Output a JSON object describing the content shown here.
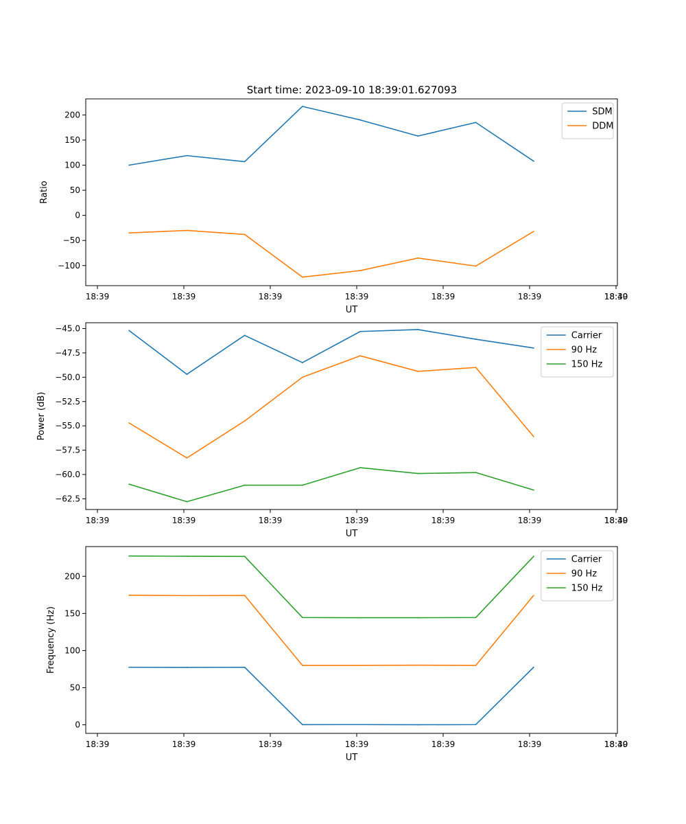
{
  "figure": {
    "title": "Start time: 2023-09-10 18:39:01.627093"
  },
  "chart_data": [
    {
      "type": "line",
      "title": "Start time: 2023-09-10 18:39:01.627093",
      "xlabel": "UT",
      "ylabel": "Ratio",
      "x_tick_labels": [
        "18:39",
        "18:39",
        "18:39",
        "18:39",
        "18:39",
        "18:39",
        "18:39",
        "18:40"
      ],
      "x_index": [
        0,
        1,
        2,
        3,
        4,
        5,
        6,
        7
      ],
      "xlim": [
        -0.75,
        8.45
      ],
      "ylim": [
        -140,
        232
      ],
      "y_ticks": [
        -100,
        -50,
        0,
        50,
        100,
        150,
        200
      ],
      "y_tick_labels": [
        "−100",
        "−50",
        "0",
        "50",
        "100",
        "150",
        "200"
      ],
      "legend_position": "top-right",
      "series": [
        {
          "name": "SDM",
          "color": "#1f77b4",
          "values": [
            100,
            119,
            107,
            217,
            190,
            158,
            185,
            108
          ]
        },
        {
          "name": "DDM",
          "color": "#ff7f0e",
          "values": [
            -35,
            -30,
            -38,
            -123,
            -110,
            -85,
            -101,
            -32
          ]
        }
      ]
    },
    {
      "type": "line",
      "title": "",
      "xlabel": "UT",
      "ylabel": "Power (dB)",
      "x_tick_labels": [
        "18:39",
        "18:39",
        "18:39",
        "18:39",
        "18:39",
        "18:39",
        "18:39",
        "18:40"
      ],
      "x_index": [
        0,
        1,
        2,
        3,
        4,
        5,
        6,
        7
      ],
      "xlim": [
        -0.75,
        8.45
      ],
      "ylim": [
        -63.6,
        -44.4
      ],
      "y_ticks": [
        -62.5,
        -60.0,
        -57.5,
        -55.0,
        -52.5,
        -50.0,
        -47.5,
        -45.0
      ],
      "y_tick_labels": [
        "−62.5",
        "−60.0",
        "−57.5",
        "−55.0",
        "−52.5",
        "−50.0",
        "−47.5",
        "−45.0"
      ],
      "legend_position": "top-right",
      "series": [
        {
          "name": "Carrier",
          "color": "#1f77b4",
          "values": [
            -45.2,
            -49.7,
            -45.7,
            -48.5,
            -45.3,
            -45.1,
            -46.1,
            -47.0
          ]
        },
        {
          "name": "90 Hz",
          "color": "#ff7f0e",
          "values": [
            -54.7,
            -58.3,
            -54.5,
            -50.0,
            -47.8,
            -49.4,
            -49.0,
            -56.1
          ]
        },
        {
          "name": "150 Hz",
          "color": "#2ca02c",
          "values": [
            -61.0,
            -62.8,
            -61.1,
            -61.1,
            -59.3,
            -59.9,
            -59.8,
            -61.6
          ]
        }
      ]
    },
    {
      "type": "line",
      "title": "",
      "xlabel": "UT",
      "ylabel": "Frequency (Hz)",
      "x_tick_labels": [
        "18:39",
        "18:39",
        "18:39",
        "18:39",
        "18:39",
        "18:39",
        "18:39",
        "18:40"
      ],
      "x_index": [
        0,
        1,
        2,
        3,
        4,
        5,
        6,
        7
      ],
      "xlim": [
        -0.75,
        8.45
      ],
      "ylim": [
        -11.5,
        240
      ],
      "y_ticks": [
        0,
        50,
        100,
        150,
        200
      ],
      "y_tick_labels": [
        "0",
        "50",
        "100",
        "150",
        "200"
      ],
      "legend_position": "top-right",
      "series": [
        {
          "name": "Carrier",
          "color": "#1f77b4",
          "values": [
            77.5,
            77.3,
            77.5,
            0.2,
            0.3,
            0.1,
            0.3,
            77.5
          ]
        },
        {
          "name": "90 Hz",
          "color": "#ff7f0e",
          "values": [
            174.5,
            174.0,
            174.2,
            80.0,
            80.0,
            80.3,
            80.0,
            174.2
          ]
        },
        {
          "name": "150 Hz",
          "color": "#2ca02c",
          "values": [
            227.3,
            227.0,
            226.8,
            144.5,
            144.2,
            144.2,
            144.5,
            226.8
          ]
        }
      ]
    }
  ]
}
